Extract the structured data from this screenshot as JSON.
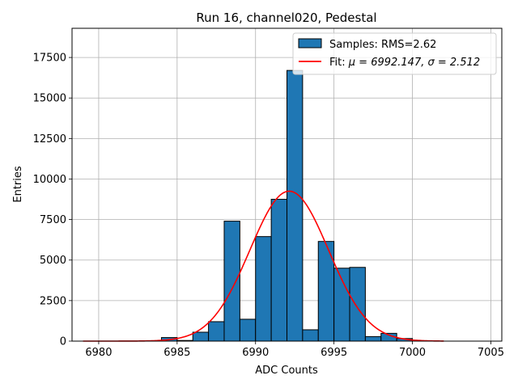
{
  "chart_data": {
    "type": "bar",
    "title": "Run 16, channel020, Pedestal",
    "xlabel": "ADC Counts",
    "ylabel": "Entries",
    "xlim": [
      6978.3,
      7005.7
    ],
    "ylim": [
      0,
      19300
    ],
    "x_ticks": [
      6980,
      6985,
      6990,
      6995,
      7000,
      7005
    ],
    "y_ticks": [
      0,
      2500,
      5000,
      7500,
      10000,
      12500,
      15000,
      17500
    ],
    "grid": true,
    "bin_width": 1,
    "histogram": {
      "name": "Samples: RMS=2.62",
      "bar_color": "#1f77b4",
      "edge_color": "#000000",
      "bin_lefts": [
        6984,
        6985,
        6986,
        6987,
        6988,
        6989,
        6990,
        6991,
        6992,
        6993,
        6994,
        6995,
        6996,
        6997,
        6998,
        6999
      ],
      "counts": [
        220,
        40,
        550,
        1200,
        7400,
        1350,
        6450,
        8750,
        16700,
        700,
        6150,
        4500,
        4550,
        280,
        480,
        160
      ]
    },
    "fit": {
      "name_prefix": "Fit: ",
      "name_math": "μ = 6992.147, σ = 2.512",
      "line_color": "#ff0000",
      "mu": 6992.147,
      "sigma": 2.512,
      "amplitude": 9250,
      "x_range": [
        6979,
        7002
      ]
    },
    "legend_position": "top-right"
  }
}
